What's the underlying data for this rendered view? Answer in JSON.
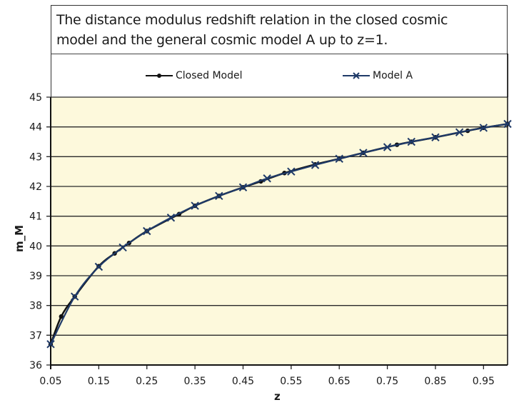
{
  "chart_data": {
    "type": "line",
    "title": "The distance modulus redshift relation in the closed cosmic model and the general cosmic model A up to z=1.",
    "title_lines": [
      "The distance modulus redshift relation in the closed cosmic",
      "model and the general cosmic model A up to z=1."
    ],
    "xlabel": "z",
    "ylabel": "m_M",
    "xlim": [
      0.05,
      1.0
    ],
    "ylim": [
      36,
      45
    ],
    "x_ticks": [
      "0.05",
      "0.15",
      "0.25",
      "0.35",
      "0.45",
      "0.55",
      "0.65",
      "0.75",
      "0.85",
      "0.95"
    ],
    "y_ticks": [
      "36",
      "37",
      "38",
      "39",
      "40",
      "41",
      "42",
      "43",
      "44",
      "45"
    ],
    "grid": "horizontal",
    "legend_position": "top",
    "background": "#fdf9dc",
    "series": [
      {
        "name": "Closed Model",
        "color": "#111111",
        "marker": "dot",
        "x": [
          0.05,
          0.072,
          0.1,
          0.15,
          0.183,
          0.213,
          0.25,
          0.317,
          0.35,
          0.4,
          0.45,
          0.487,
          0.536,
          0.6,
          0.65,
          0.7,
          0.77,
          0.8,
          0.85,
          0.917,
          0.95,
          1.0
        ],
        "y": [
          36.7,
          37.63,
          38.3,
          39.32,
          39.75,
          40.1,
          40.5,
          41.07,
          41.35,
          41.68,
          41.97,
          42.17,
          42.45,
          42.74,
          42.93,
          43.13,
          43.4,
          43.5,
          43.65,
          43.87,
          43.97,
          44.1
        ]
      },
      {
        "name": "Model A",
        "color": "#1f3a68",
        "marker": "x",
        "x": [
          0.05,
          0.1,
          0.15,
          0.2,
          0.25,
          0.3,
          0.35,
          0.4,
          0.45,
          0.5,
          0.55,
          0.6,
          0.65,
          0.7,
          0.75,
          0.8,
          0.85,
          0.9,
          0.95,
          1.0
        ],
        "y": [
          36.7,
          38.3,
          39.3,
          39.95,
          40.5,
          40.95,
          41.35,
          41.68,
          41.97,
          42.27,
          42.5,
          42.72,
          42.93,
          43.13,
          43.32,
          43.5,
          43.65,
          43.82,
          43.97,
          44.1
        ]
      }
    ]
  },
  "legend": {
    "closed_label": "Closed Model",
    "model_a_label": "Model A"
  }
}
